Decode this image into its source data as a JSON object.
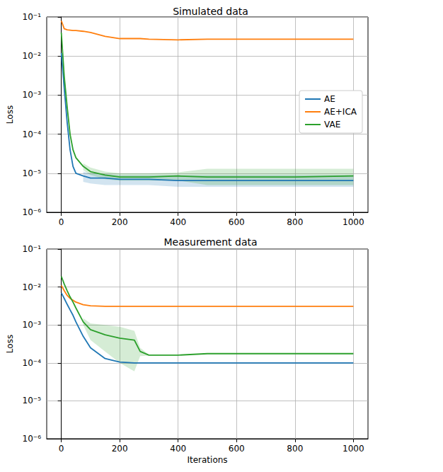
{
  "chart_data": [
    {
      "type": "line",
      "title": "Simulated data",
      "ylabel": "Loss",
      "log": "y",
      "grid": true,
      "legend": "center right",
      "x": [
        0,
        10,
        20,
        30,
        40,
        50,
        75,
        100,
        150,
        200,
        250,
        270,
        300,
        400,
        500,
        600,
        800,
        1000
      ],
      "xlim": [
        -50,
        1050
      ],
      "xticks": [
        0,
        200,
        400,
        600,
        800,
        1000
      ],
      "ylim": [
        1e-06,
        0.1
      ],
      "yticks": [
        {
          "value": 1e-06,
          "label": "10⁻⁶"
        },
        {
          "value": 1e-05,
          "label": "10⁻⁵"
        },
        {
          "value": 0.0001,
          "label": "10⁻⁴"
        },
        {
          "value": 0.001,
          "label": "10⁻³"
        },
        {
          "value": 0.01,
          "label": "10⁻²"
        },
        {
          "value": 0.1,
          "label": "10⁻¹"
        }
      ],
      "series": [
        {
          "name": "AE",
          "color": "#1f77b4",
          "values": [
            0.012,
            0.0015,
            0.0002,
            4e-05,
            1.5e-05,
            1e-05,
            8.5e-06,
            7.5e-06,
            7.5e-06,
            7e-06,
            7e-06,
            7e-06,
            7e-06,
            6.5e-06,
            6.5e-06,
            6.5e-06,
            6.5e-06,
            6.5e-06
          ],
          "lower": [
            null,
            null,
            null,
            null,
            null,
            null,
            6e-06,
            5.5e-06,
            5e-06,
            5e-06,
            5e-06,
            5e-06,
            5e-06,
            4.5e-06,
            4.5e-06,
            4.5e-06,
            4.5e-06,
            4.5e-06
          ],
          "upper": [
            null,
            null,
            null,
            null,
            null,
            null,
            1.1e-05,
            1e-05,
            9.5e-06,
            9e-06,
            9e-06,
            9e-06,
            9e-06,
            9e-06,
            9e-06,
            9e-06,
            9e-06,
            9e-06
          ]
        },
        {
          "name": "AE+ICA",
          "color": "#ff7f0e",
          "values": [
            0.08,
            0.05,
            0.047,
            0.046,
            0.045,
            0.045,
            0.043,
            0.04,
            0.032,
            0.028,
            0.028,
            0.028,
            0.027,
            0.026,
            0.027,
            0.027,
            0.027,
            0.027
          ]
        },
        {
          "name": "VAE",
          "color": "#2ca02c",
          "values": [
            0.04,
            0.003,
            0.0005,
            0.0001,
            4e-05,
            2.5e-05,
            1.5e-05,
            1.1e-05,
            9e-06,
            8e-06,
            8e-06,
            8e-06,
            8e-06,
            8.5e-06,
            8e-06,
            8e-06,
            8e-06,
            8.5e-06
          ],
          "lower": [
            null,
            null,
            null,
            null,
            null,
            null,
            1.2e-05,
            9e-06,
            7e-06,
            6.5e-06,
            6.5e-06,
            6.5e-06,
            6.5e-06,
            6.5e-06,
            5e-06,
            5e-06,
            5e-06,
            5e-06
          ],
          "upper": [
            null,
            null,
            null,
            null,
            null,
            null,
            1.8e-05,
            1.4e-05,
            1.1e-05,
            1e-05,
            1e-05,
            1e-05,
            1e-05,
            1.05e-05,
            1.3e-05,
            1.3e-05,
            1.3e-05,
            1.3e-05
          ]
        }
      ]
    },
    {
      "type": "line",
      "title": "Measurement data",
      "xlabel": "Iterations",
      "ylabel": "Loss",
      "log": "y",
      "grid": true,
      "x": [
        0,
        10,
        20,
        30,
        40,
        50,
        75,
        100,
        150,
        200,
        250,
        270,
        300,
        400,
        500,
        600,
        800,
        1000
      ],
      "xlim": [
        -50,
        1050
      ],
      "xticks": [
        0,
        200,
        400,
        600,
        800,
        1000
      ],
      "ylim": [
        1e-06,
        0.1
      ],
      "yticks": [
        {
          "value": 1e-06,
          "label": "10⁻⁶"
        },
        {
          "value": 1e-05,
          "label": "10⁻⁵"
        },
        {
          "value": 0.0001,
          "label": "10⁻⁴"
        },
        {
          "value": 0.001,
          "label": "10⁻³"
        },
        {
          "value": 0.01,
          "label": "10⁻²"
        },
        {
          "value": 0.1,
          "label": "10⁻¹"
        }
      ],
      "series": [
        {
          "name": "AE",
          "color": "#1f77b4",
          "values": [
            0.007,
            0.005,
            0.0035,
            0.0025,
            0.0018,
            0.0012,
            0.0005,
            0.00025,
            0.00013,
            0.000105,
            0.0001,
            0.0001,
            0.0001,
            0.0001,
            0.0001,
            0.0001,
            0.0001,
            0.0001
          ]
        },
        {
          "name": "AE+ICA",
          "color": "#ff7f0e",
          "values": [
            0.011,
            0.008,
            0.006,
            0.005,
            0.0045,
            0.004,
            0.0034,
            0.0032,
            0.0031,
            0.0031,
            0.0031,
            0.0031,
            0.0031,
            0.0031,
            0.0031,
            0.0031,
            0.0031,
            0.0031
          ]
        },
        {
          "name": "VAE",
          "color": "#2ca02c",
          "values": [
            0.019,
            0.012,
            0.008,
            0.0055,
            0.004,
            0.0028,
            0.0012,
            0.00075,
            0.00055,
            0.00045,
            0.0004,
            0.0002,
            0.00016,
            0.00016,
            0.000175,
            0.000175,
            0.000175,
            0.000175
          ],
          "lower": [
            null,
            null,
            null,
            null,
            null,
            null,
            0.001,
            0.0004,
            0.0002,
            0.0001,
            6e-05,
            0.00015,
            0.000155,
            null,
            null,
            null,
            null,
            null
          ],
          "upper": [
            null,
            null,
            null,
            null,
            null,
            null,
            0.0015,
            0.0011,
            0.001,
            0.0009,
            0.0007,
            0.00025,
            0.000165,
            null,
            null,
            null,
            null,
            null
          ]
        }
      ]
    }
  ]
}
